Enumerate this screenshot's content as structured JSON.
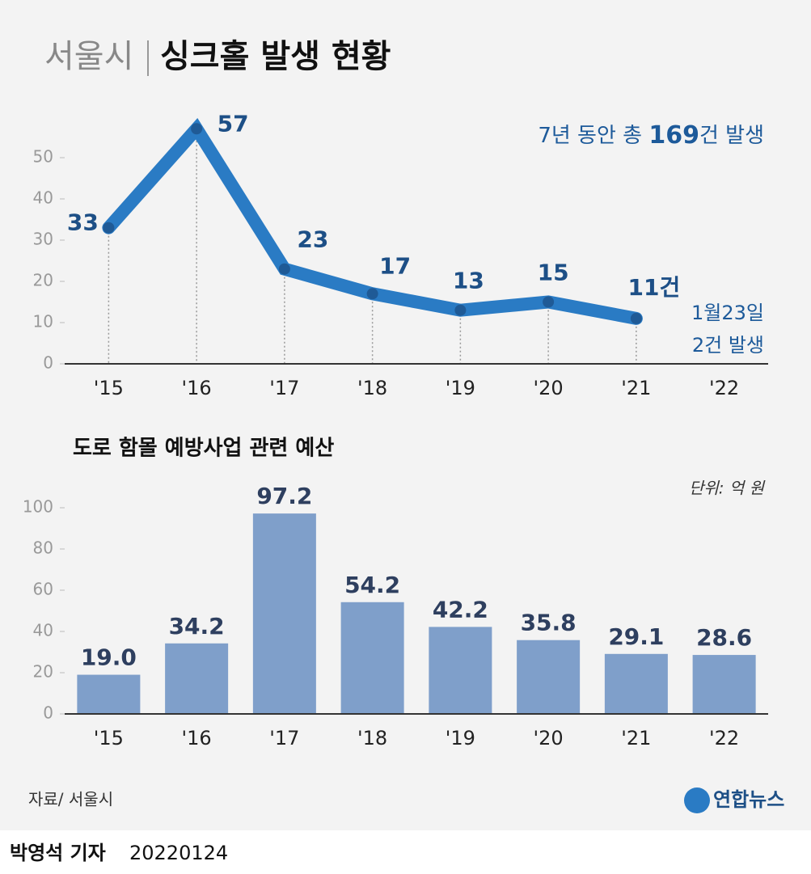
{
  "title_prefix": "서울시",
  "title": "싱크홀 발생 현황",
  "chart_data": [
    {
      "type": "line",
      "categories": [
        "'15",
        "'16",
        "'17",
        "'18",
        "'19",
        "'20",
        "'21",
        "'22"
      ],
      "values": [
        33,
        57,
        23,
        17,
        13,
        15,
        11,
        null
      ],
      "value_labels": [
        "33",
        "57",
        "23",
        "17",
        "13",
        "15",
        "11건",
        null
      ],
      "color": "#2a7bc4",
      "marker_color": "#1f5a96",
      "ylim": [
        0,
        60
      ],
      "yticks": [
        0,
        10,
        20,
        30,
        40,
        50
      ],
      "annotation": [
        "7년 동안 총 ",
        "169",
        "건 발생"
      ],
      "note": [
        "1월23일",
        "2건 발생"
      ]
    },
    {
      "type": "bar",
      "title": "도로 함몰 예방사업 관련 예산",
      "unit": "단위: 억 원",
      "categories": [
        "'15",
        "'16",
        "'17",
        "'18",
        "'19",
        "'20",
        "'21",
        "'22"
      ],
      "values": [
        19.0,
        34.2,
        97.2,
        54.2,
        42.2,
        35.8,
        29.1,
        28.6
      ],
      "value_labels": [
        "19.0",
        "34.2",
        "97.2",
        "54.2",
        "42.2",
        "35.8",
        "29.1",
        "28.6"
      ],
      "color": "#7f9fca",
      "ylim": [
        0,
        110
      ],
      "yticks": [
        0,
        20,
        40,
        60,
        80,
        100
      ]
    }
  ],
  "source": "자료/ 서울시",
  "logo": "연합뉴스",
  "byline": {
    "author": "박영석 기자",
    "date": "20220124"
  }
}
